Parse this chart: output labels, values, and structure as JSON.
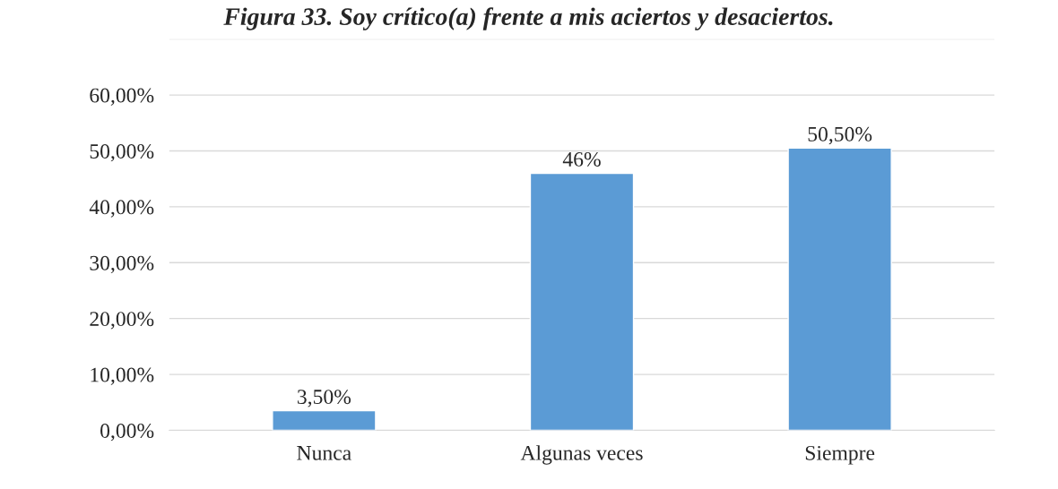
{
  "chart_data": {
    "type": "bar",
    "title": "Figura 33. Soy crítico(a) frente a mis aciertos y desaciertos.",
    "categories": [
      "Nunca",
      "Algunas veces",
      "Siempre"
    ],
    "values": [
      3.5,
      46,
      50.5
    ],
    "value_labels": [
      "3,50%",
      "46%",
      "50,50%"
    ],
    "color": "#5b9bd5",
    "ylim": [
      0,
      70
    ],
    "yticks": [
      {
        "value": 0,
        "label": "0,00%"
      },
      {
        "value": 10,
        "label": "10,00%"
      },
      {
        "value": 20,
        "label": "20,00%"
      },
      {
        "value": 30,
        "label": "30,00%"
      },
      {
        "value": 40,
        "label": "40,00%"
      },
      {
        "value": 50,
        "label": "50,00%"
      },
      {
        "value": 60,
        "label": "60,00%"
      },
      {
        "value": 70,
        "label": null
      }
    ],
    "grid": "y",
    "legend": false
  }
}
